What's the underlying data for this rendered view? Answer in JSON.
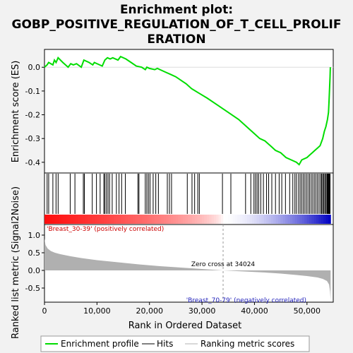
{
  "chart_data": {
    "type": "line",
    "title_lines": [
      "Enrichment plot:",
      "GOBP_POSITIVE_REGULATION_OF_T_CELL_PROLIF",
      "ERATION"
    ],
    "xlabel": "Rank in Ordered Dataset",
    "ylabel_top": "Enrichment score (ES)",
    "ylabel_bottom": "Ranked list metric (Signal2Noise)",
    "x_ticks": [
      0,
      10000,
      20000,
      30000,
      40000,
      50000
    ],
    "x_tick_labels": [
      "0",
      "10,000",
      "20,000",
      "30,000",
      "40,000",
      "50,000"
    ],
    "xlim": [
      0,
      55000
    ],
    "es_yticks": [
      0.0,
      -0.1,
      -0.2,
      -0.3,
      -0.4
    ],
    "es_ytick_labels": [
      "0.0",
      "-0.1",
      "-0.2",
      "-0.3",
      "-0.4"
    ],
    "es_ylim": [
      -0.445,
      0.075
    ],
    "metric_yticks": [
      1.0,
      0.5,
      0.0,
      -0.5
    ],
    "metric_ytick_labels": [
      "1.0",
      "0.5",
      "0.0",
      "-0.5"
    ],
    "metric_ylim": [
      -0.9,
      1.3
    ],
    "zero_cross": 34024,
    "zero_cross_label": "Zero cross at 34024",
    "pos_label": "'Breast_30-39' (positively correlated)",
    "neg_label": "'Breast_70-79' (negatively correlated)",
    "legend": {
      "enrichment": "Enrichment profile",
      "hits": "Hits",
      "ranking": "Ranking metric scores"
    },
    "colors": {
      "enrichment": "#00dd00",
      "hits": "#000000",
      "metric_fill": "#b0b0b0",
      "pos_label": "#cc0000",
      "neg_label": "#2222bb",
      "zero_line": "#999999"
    },
    "es_curve": [
      [
        0,
        0.0
      ],
      [
        500,
        0.01
      ],
      [
        800,
        0.02
      ],
      [
        1600,
        0.01
      ],
      [
        1900,
        0.03
      ],
      [
        2200,
        0.02
      ],
      [
        2600,
        0.04
      ],
      [
        3500,
        0.02
      ],
      [
        4500,
        0.0
      ],
      [
        5000,
        0.015
      ],
      [
        5500,
        0.01
      ],
      [
        6100,
        0.015
      ],
      [
        7000,
        0.0
      ],
      [
        7500,
        0.03
      ],
      [
        8500,
        0.02
      ],
      [
        9200,
        0.01
      ],
      [
        9500,
        0.02
      ],
      [
        10500,
        0.01
      ],
      [
        11000,
        0.005
      ],
      [
        11500,
        0.03
      ],
      [
        12000,
        0.04
      ],
      [
        12500,
        0.035
      ],
      [
        13000,
        0.04
      ],
      [
        14000,
        0.03
      ],
      [
        14500,
        0.045
      ],
      [
        15500,
        0.035
      ],
      [
        16500,
        0.02
      ],
      [
        17500,
        0.005
      ],
      [
        18500,
        0.0
      ],
      [
        19200,
        -0.01
      ],
      [
        19500,
        0.0
      ],
      [
        20000,
        -0.005
      ],
      [
        21000,
        -0.01
      ],
      [
        21500,
        -0.005
      ],
      [
        22000,
        -0.01
      ],
      [
        23000,
        -0.02
      ],
      [
        24000,
        -0.03
      ],
      [
        25000,
        -0.04
      ],
      [
        27000,
        -0.07
      ],
      [
        28000,
        -0.09
      ],
      [
        29500,
        -0.11
      ],
      [
        31000,
        -0.13
      ],
      [
        33000,
        -0.16
      ],
      [
        35000,
        -0.19
      ],
      [
        37000,
        -0.22
      ],
      [
        39000,
        -0.26
      ],
      [
        40000,
        -0.28
      ],
      [
        41000,
        -0.3
      ],
      [
        42000,
        -0.31
      ],
      [
        43000,
        -0.33
      ],
      [
        44000,
        -0.35
      ],
      [
        45000,
        -0.36
      ],
      [
        46000,
        -0.38
      ],
      [
        47000,
        -0.39
      ],
      [
        48000,
        -0.4
      ],
      [
        48500,
        -0.41
      ],
      [
        49000,
        -0.39
      ],
      [
        50000,
        -0.38
      ],
      [
        50500,
        -0.37
      ],
      [
        51000,
        -0.36
      ],
      [
        51500,
        -0.35
      ],
      [
        52000,
        -0.34
      ],
      [
        52500,
        -0.33
      ],
      [
        53000,
        -0.3
      ],
      [
        53300,
        -0.27
      ],
      [
        53600,
        -0.25
      ],
      [
        53900,
        -0.22
      ],
      [
        54100,
        -0.19
      ],
      [
        54200,
        -0.14
      ],
      [
        54300,
        -0.09
      ],
      [
        54400,
        -0.04
      ],
      [
        54450,
        0.0
      ]
    ],
    "hits": [
      500,
      800,
      1600,
      2200,
      2600,
      4900,
      5800,
      7400,
      7600,
      9100,
      9900,
      10600,
      11300,
      11500,
      11800,
      12100,
      12400,
      12900,
      13700,
      14200,
      14700,
      15400,
      17800,
      18000,
      19200,
      19500,
      19800,
      20100,
      20700,
      21200,
      21700,
      23400,
      23800,
      24200,
      27200,
      28100,
      28600,
      29200,
      29500,
      33900,
      35500,
      38300,
      39300,
      39900,
      40200,
      40500,
      40800,
      41200,
      41700,
      42300,
      42700,
      43300,
      44000,
      44700,
      45200,
      45900,
      46700,
      47300,
      47700,
      48000,
      48400,
      48700,
      49000,
      49300,
      49600,
      49900,
      50200,
      50500,
      50800,
      51100,
      51400,
      51700,
      52000,
      52300,
      52600,
      52800,
      53000,
      53200,
      53400,
      53600,
      53800,
      53900,
      54000,
      54100,
      54200,
      54300,
      54400
    ],
    "metric_curve": [
      [
        0,
        0.9
      ],
      [
        200,
        0.72
      ],
      [
        600,
        0.62
      ],
      [
        1200,
        0.55
      ],
      [
        2000,
        0.5
      ],
      [
        3000,
        0.46
      ],
      [
        4000,
        0.43
      ],
      [
        5000,
        0.4
      ],
      [
        7000,
        0.35
      ],
      [
        10000,
        0.29
      ],
      [
        14000,
        0.23
      ],
      [
        18000,
        0.17
      ],
      [
        22000,
        0.12
      ],
      [
        26000,
        0.08
      ],
      [
        30000,
        0.04
      ],
      [
        34024,
        0.0
      ],
      [
        38000,
        -0.03
      ],
      [
        42000,
        -0.06
      ],
      [
        45000,
        -0.09
      ],
      [
        48000,
        -0.13
      ],
      [
        50000,
        -0.16
      ],
      [
        52000,
        -0.2
      ],
      [
        53000,
        -0.24
      ],
      [
        53800,
        -0.3
      ],
      [
        54200,
        -0.4
      ],
      [
        54400,
        -0.6
      ],
      [
        54500,
        -0.85
      ]
    ]
  }
}
